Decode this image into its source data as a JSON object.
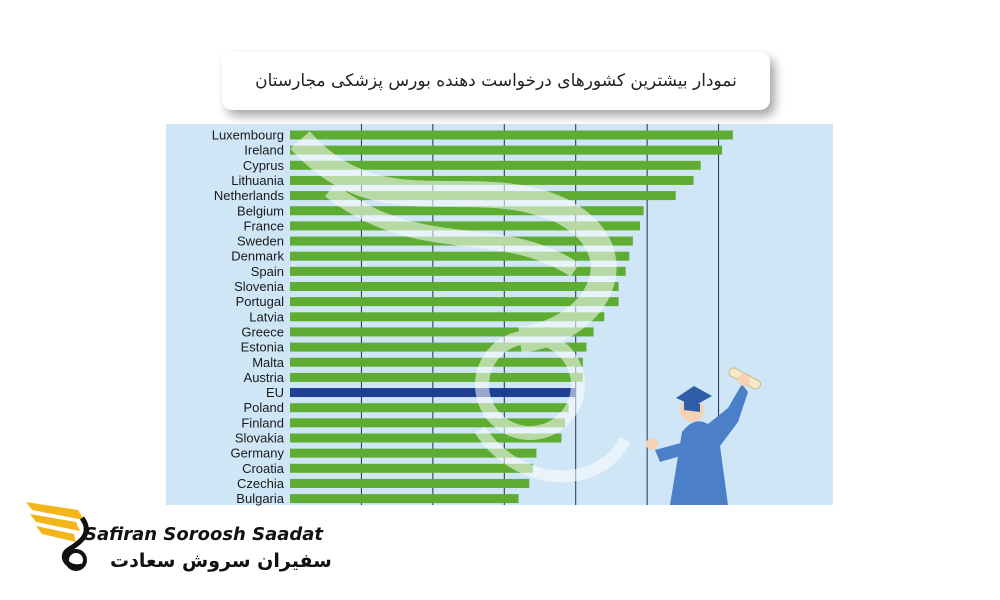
{
  "title": "نمودار بیشترین کشورهای درخواست دهنده بورس پزشکی مجارستان",
  "logo": {
    "name_en": "Safiran Soroosh Saadat",
    "name_fa": "سفیران سروش سعادت",
    "icon": "wing-swirl-logo-icon"
  },
  "illustration": {
    "icon": "graduate-holding-diploma-icon"
  },
  "colors": {
    "background": "#cfe6f7",
    "bar": "#5fac33",
    "highlight_bar": "#1f3f93",
    "gridline": "#2a2a55",
    "accent_gold": "#f2b619"
  },
  "chart_data": {
    "type": "bar",
    "orientation": "horizontal",
    "categories": [
      "Luxembourg",
      "Ireland",
      "Cyprus",
      "Lithuania",
      "Netherlands",
      "Belgium",
      "France",
      "Sweden",
      "Denmark",
      "Spain",
      "Slovenia",
      "Portugal",
      "Latvia",
      "Greece",
      "Estonia",
      "Malta",
      "Austria",
      "EU",
      "Poland",
      "Finland",
      "Slovakia",
      "Germany",
      "Croatia",
      "Czechia",
      "Bulgaria"
    ],
    "values": [
      62,
      60.5,
      57.5,
      56.5,
      54,
      49.5,
      49,
      48,
      47.5,
      47,
      46,
      46,
      44,
      42.5,
      41.5,
      41,
      41,
      40,
      39,
      38.5,
      38,
      34.5,
      34,
      33.5,
      32
    ],
    "highlight": "EU",
    "xlim": [
      0,
      70
    ],
    "gridlines": [
      10,
      20,
      30,
      40,
      50,
      60
    ],
    "grid": true
  }
}
